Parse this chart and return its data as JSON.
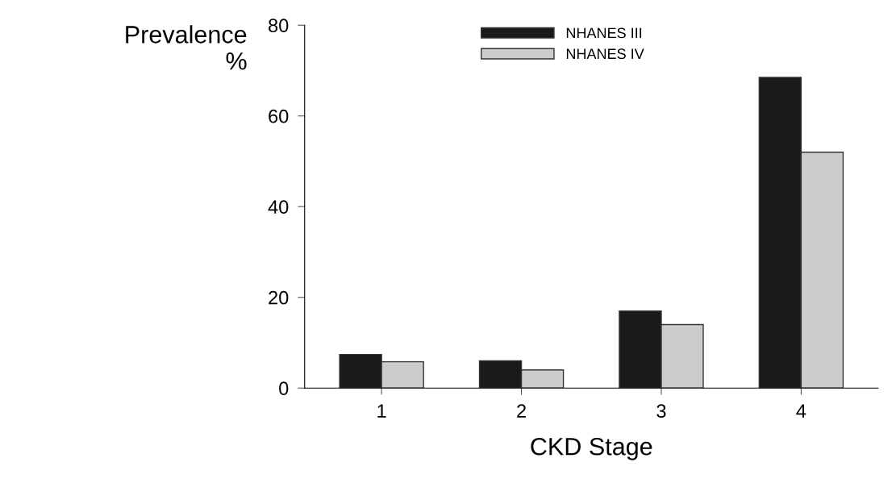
{
  "chart_data": {
    "type": "bar",
    "ylabel": "Prevalence\n%",
    "xlabel": "CKD Stage",
    "categories": [
      "1",
      "2",
      "3",
      "4"
    ],
    "series": [
      {
        "name": "NHANES III",
        "color": "#1a1a1a",
        "values": [
          7.4,
          6.0,
          17.0,
          68.5
        ]
      },
      {
        "name": "NHANES IV",
        "color": "#cccccc",
        "values": [
          5.8,
          4.0,
          14.0,
          52.0
        ]
      }
    ],
    "ylim": [
      0,
      80
    ],
    "yticks": [
      0,
      20,
      40,
      60,
      80
    ],
    "legend": "top",
    "grid": false
  }
}
